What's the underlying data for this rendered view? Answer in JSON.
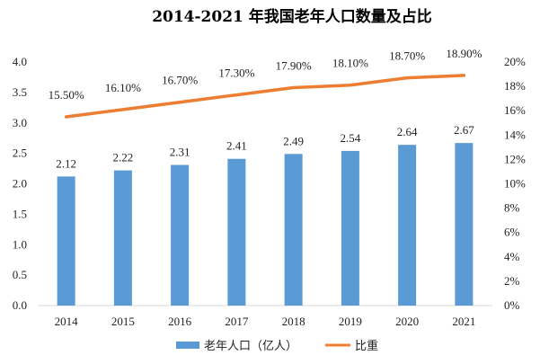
{
  "chart_data": {
    "type": "bar",
    "title": "2014-2021 年我国老年人口数量及占比",
    "categories": [
      "2014",
      "2015",
      "2016",
      "2017",
      "2018",
      "2019",
      "2020",
      "2021"
    ],
    "series": [
      {
        "name": "老年人口（亿人）",
        "type": "bar",
        "axis": "left",
        "color": "#5B9BD5",
        "values": [
          2.12,
          2.22,
          2.31,
          2.41,
          2.49,
          2.54,
          2.64,
          2.67
        ],
        "labels": [
          "2.12",
          "2.22",
          "2.31",
          "2.41",
          "2.49",
          "2.54",
          "2.64",
          "2.67"
        ]
      },
      {
        "name": "比重",
        "type": "line",
        "axis": "right",
        "color": "#ED7D31",
        "values": [
          15.5,
          16.1,
          16.7,
          17.3,
          17.9,
          18.1,
          18.7,
          18.9
        ],
        "labels": [
          "15.50%",
          "16.10%",
          "16.70%",
          "17.30%",
          "17.90%",
          "18.10%",
          "18.70%",
          "18.90%"
        ]
      }
    ],
    "y_left": {
      "ylim": [
        0,
        4.0
      ],
      "ticks": [
        "0.0",
        "0.5",
        "1.0",
        "1.5",
        "2.0",
        "2.5",
        "3.0",
        "3.5",
        "4.0"
      ]
    },
    "y_right": {
      "ylim": [
        0,
        20
      ],
      "ticks": [
        "0%",
        "2%",
        "4%",
        "6%",
        "8%",
        "10%",
        "12%",
        "14%",
        "16%",
        "18%",
        "20%"
      ]
    },
    "grid": false,
    "legend": "bottom"
  }
}
